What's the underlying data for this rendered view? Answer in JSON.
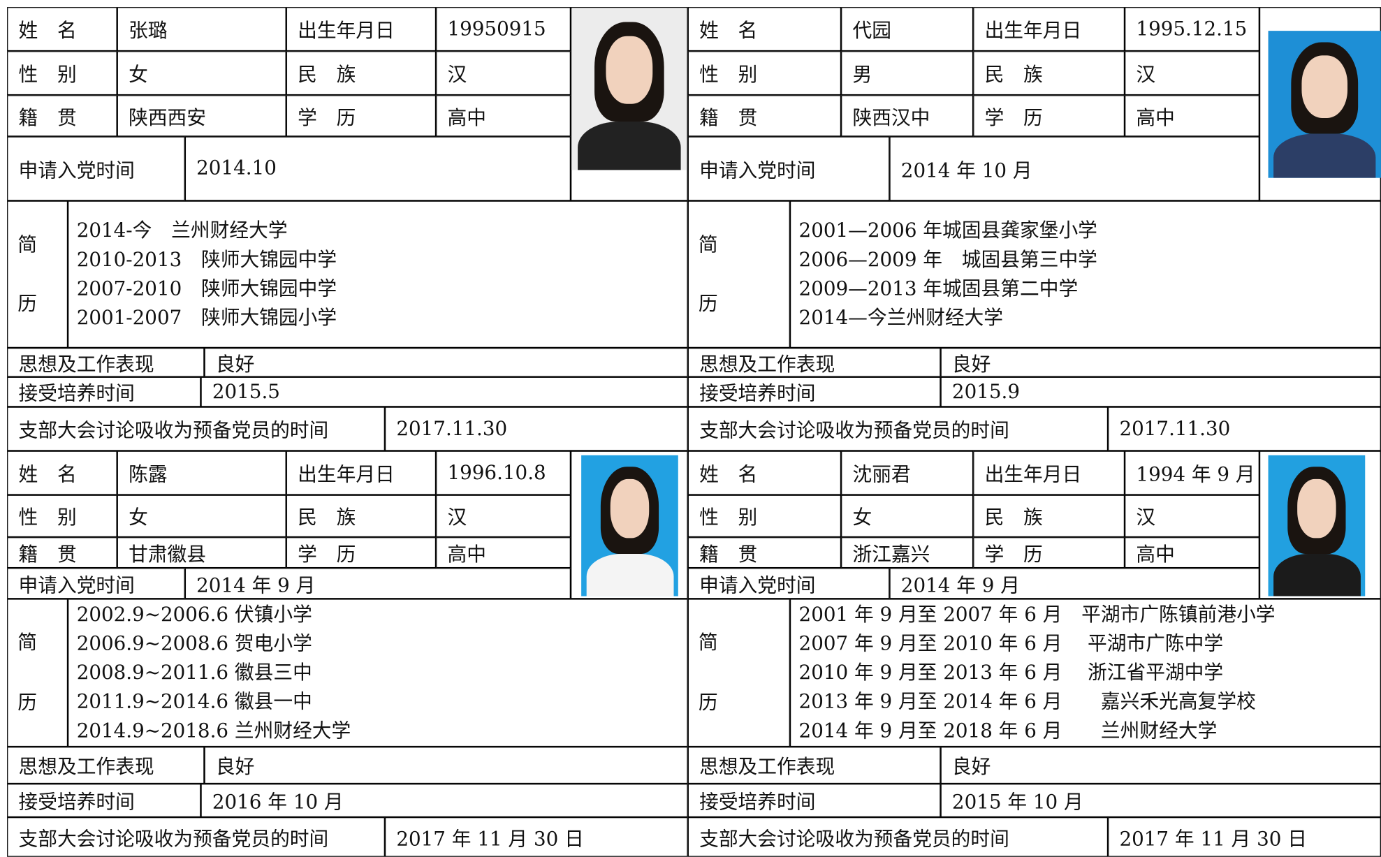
{
  "cards": [
    {
      "name_label": "姓　名",
      "name": "张璐",
      "birth_label": "出生年月日",
      "birth": "19950915",
      "gender_label": "性　别",
      "gender": "女",
      "ethnic_label": "民　族",
      "ethnic": "汉",
      "origin_label": "籍　贯",
      "origin": "陕西西安",
      "edu_label": "学　历",
      "edu": "高中",
      "apply_label": "申请入党时间",
      "apply": "2014.10",
      "resume_label": [
        "简",
        "历"
      ],
      "resume": [
        "2014-今　兰州财经大学",
        "2010-2013　陕师大锦园中学",
        "2007-2010　陕师大锦园中学",
        "2001-2007　陕师大锦园小学"
      ],
      "thought_label": "思想及工作表现",
      "thought": "良好",
      "train_label": "接受培养时间",
      "train": "2015.5",
      "branch_label": "支部大会讨论吸收为预备党员的时间",
      "branch": "2017.11.30"
    },
    {
      "name_label": "姓　名",
      "name": "代园",
      "birth_label": "出生年月日",
      "birth": "1995.12.15",
      "gender_label": "性　别",
      "gender": "男",
      "ethnic_label": "民　族",
      "ethnic": "汉",
      "origin_label": "籍　贯",
      "origin": "陕西汉中",
      "edu_label": "学　历",
      "edu": "高中",
      "apply_label": "申请入党时间",
      "apply": "2014 年 10 月",
      "resume_label": [
        "简",
        "历"
      ],
      "resume": [
        "2001—2006 年城固县龚家堡小学",
        "2006—2009 年　城固县第三中学",
        "2009—2013 年城固县第二中学",
        "2014—今兰州财经大学"
      ],
      "thought_label": "思想及工作表现",
      "thought": "良好",
      "train_label": "接受培养时间",
      "train": "2015.9",
      "branch_label": "支部大会讨论吸收为预备党员的时间",
      "branch": "2017.11.30"
    },
    {
      "name_label": "姓　名",
      "name": "陈露",
      "birth_label": "出生年月日",
      "birth": "1996.10.8",
      "gender_label": "性　别",
      "gender": "女",
      "ethnic_label": "民　族",
      "ethnic": "汉",
      "origin_label": "籍　贯",
      "origin": "甘肃徽县",
      "edu_label": "学　历",
      "edu": "高中",
      "apply_label": "申请入党时间",
      "apply": "2014 年 9 月",
      "resume_label": [
        "简",
        "历"
      ],
      "resume": [
        "2002.9~2006.6 伏镇小学",
        "2006.9~2008.6 贺电小学",
        "2008.9~2011.6 徽县三中",
        "2011.9~2014.6 徽县一中",
        "2014.9~2018.6 兰州财经大学"
      ],
      "thought_label": "思想及工作表现",
      "thought": "良好",
      "train_label": "接受培养时间",
      "train": "2016 年 10 月",
      "branch_label": "支部大会讨论吸收为预备党员的时间",
      "branch": "2017 年 11 月 30 日"
    },
    {
      "name_label": "姓　名",
      "name": "沈丽君",
      "birth_label": "出生年月日",
      "birth": "1994 年 9 月",
      "gender_label": "性　别",
      "gender": "女",
      "ethnic_label": "民　族",
      "ethnic": "汉",
      "origin_label": "籍　贯",
      "origin": "浙江嘉兴",
      "edu_label": "学　历",
      "edu": "高中",
      "apply_label": "申请入党时间",
      "apply": "2014 年 9 月",
      "resume_label": [
        "简",
        "历"
      ],
      "resume": [
        "2001 年 9 月至 2007 年 6 月　平湖市广陈镇前港小学",
        "2007 年 9 月至 2010 年 6 月　 平湖市广陈中学",
        "2010 年 9 月至 2013 年 6 月　 浙江省平湖中学",
        "2013 年 9 月至 2014 年 6 月　　嘉兴禾光高复学校",
        "2014 年 9 月至 2018 年 6 月　　兰州财经大学"
      ],
      "thought_label": "思想及工作表现",
      "thought": "良好",
      "train_label": "接受培养时间",
      "train": "2015 年 10 月",
      "branch_label": "支部大会讨论吸收为预备党员的时间",
      "branch": "2017 年 11 月 30 日"
    }
  ]
}
